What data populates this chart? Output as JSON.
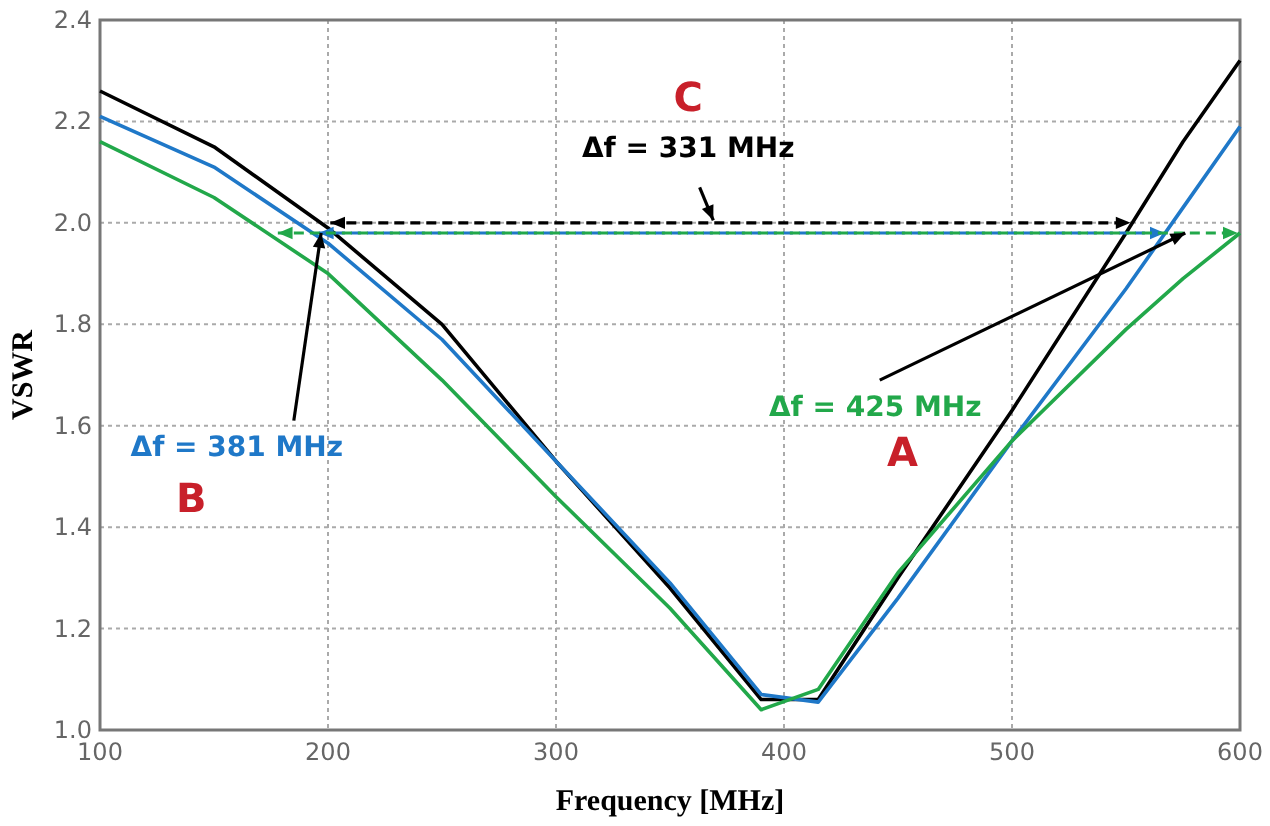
{
  "chart_data": {
    "type": "line",
    "xlabel": "Frequency [MHz]",
    "ylabel": "VSWR",
    "x": [
      100,
      150,
      200,
      250,
      300,
      350,
      390,
      415,
      450,
      500,
      550,
      575,
      600
    ],
    "series": [
      {
        "color": "#000000",
        "values": [
          2.26,
          2.15,
          1.99,
          1.8,
          1.53,
          1.28,
          1.06,
          1.06,
          1.3,
          1.63,
          1.98,
          2.16,
          2.32
        ]
      },
      {
        "color": "#1f78c8",
        "values": [
          2.21,
          2.11,
          1.96,
          1.77,
          1.53,
          1.29,
          1.07,
          1.055,
          1.26,
          1.57,
          1.87,
          2.03,
          2.19
        ]
      },
      {
        "color": "#22a84a",
        "values": [
          2.16,
          2.05,
          1.9,
          1.69,
          1.46,
          1.24,
          1.04,
          1.08,
          1.31,
          1.57,
          1.79,
          1.89,
          1.98
        ]
      }
    ],
    "xlim": [
      100,
      600
    ],
    "xticks": [
      100,
      200,
      300,
      400,
      500,
      600
    ],
    "ylim": [
      1.0,
      2.4
    ],
    "yticks": [
      {
        "value": 1.0,
        "label": "1.0"
      },
      1.2,
      1.4,
      1.6,
      1.8,
      {
        "value": 2.0,
        "label": "2.0"
      },
      2.2,
      2.4
    ],
    "grid": true,
    "marker": "none",
    "line_style": "solid",
    "ref_lines": [
      {
        "axis": "y",
        "value": 2.0,
        "color": "#000000",
        "line_style": "dashed"
      },
      {
        "axis": "y",
        "value": 1.98,
        "color": "#1f78c8",
        "line_style": "dashed"
      },
      {
        "axis": "y",
        "value": 1.98,
        "color": "#22a84a",
        "line_style": "dashed"
      }
    ],
    "annotations": [
      "C",
      "Δf = 331 MHz",
      {
        "text": "Δf = 381 MHz",
        "x": 197,
        "y": 1.98
      },
      "B",
      {
        "text": "Δf = 425 MHz",
        "x": 576,
        "y": 1.98
      },
      "A"
    ]
  }
}
